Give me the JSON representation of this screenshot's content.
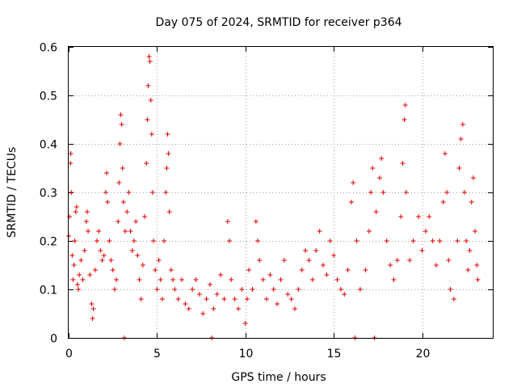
{
  "chart_data": {
    "type": "scatter",
    "title": "Day 075 of 2024, SRMTID for receiver p364",
    "xlabel": "GPS time / hours",
    "ylabel": "SRMTID / TECUs",
    "xlim": [
      0,
      24
    ],
    "ylim": [
      0,
      0.6
    ],
    "x_ticks": [
      0,
      5,
      10,
      15,
      20
    ],
    "x_tick_labels": [
      "0",
      "5",
      "10",
      "15",
      "20"
    ],
    "y_ticks": [
      0,
      0.1,
      0.2,
      0.3,
      0.4,
      0.5,
      0.6
    ],
    "y_tick_labels": [
      "0",
      "0.1",
      "0.2",
      "0.3",
      "0.4",
      "0.5",
      "0.6"
    ],
    "grid": true,
    "marker": "+",
    "series_color": "#e00000",
    "series": [
      {
        "name": "SRMTID",
        "points": [
          [
            0.0,
            0.21
          ],
          [
            0.05,
            0.25
          ],
          [
            0.1,
            0.36
          ],
          [
            0.12,
            0.38
          ],
          [
            0.15,
            0.3
          ],
          [
            0.2,
            0.17
          ],
          [
            0.25,
            0.12
          ],
          [
            0.3,
            0.15
          ],
          [
            0.35,
            0.2
          ],
          [
            0.4,
            0.26
          ],
          [
            0.45,
            0.27
          ],
          [
            0.5,
            0.11
          ],
          [
            0.55,
            0.1
          ],
          [
            0.6,
            0.13
          ],
          [
            0.7,
            0.16
          ],
          [
            0.8,
            0.12
          ],
          [
            0.9,
            0.18
          ],
          [
            1.0,
            0.24
          ],
          [
            1.05,
            0.26
          ],
          [
            1.1,
            0.22
          ],
          [
            1.2,
            0.13
          ],
          [
            1.3,
            0.07
          ],
          [
            1.35,
            0.04
          ],
          [
            1.4,
            0.06
          ],
          [
            1.5,
            0.14
          ],
          [
            1.6,
            0.2
          ],
          [
            1.7,
            0.22
          ],
          [
            1.8,
            0.18
          ],
          [
            1.9,
            0.16
          ],
          [
            2.0,
            0.17
          ],
          [
            2.1,
            0.3
          ],
          [
            2.15,
            0.34
          ],
          [
            2.2,
            0.28
          ],
          [
            2.3,
            0.2
          ],
          [
            2.4,
            0.16
          ],
          [
            2.5,
            0.14
          ],
          [
            2.6,
            0.1
          ],
          [
            2.7,
            0.12
          ],
          [
            2.8,
            0.24
          ],
          [
            2.85,
            0.32
          ],
          [
            2.9,
            0.4
          ],
          [
            2.95,
            0.46
          ],
          [
            3.0,
            0.44
          ],
          [
            3.05,
            0.35
          ],
          [
            3.1,
            0.28
          ],
          [
            3.15,
            0.0
          ],
          [
            3.2,
            0.22
          ],
          [
            3.3,
            0.26
          ],
          [
            3.4,
            0.3
          ],
          [
            3.5,
            0.22
          ],
          [
            3.6,
            0.18
          ],
          [
            3.7,
            0.2
          ],
          [
            3.8,
            0.24
          ],
          [
            3.9,
            0.17
          ],
          [
            4.0,
            0.12
          ],
          [
            4.1,
            0.08
          ],
          [
            4.2,
            0.15
          ],
          [
            4.3,
            0.25
          ],
          [
            4.4,
            0.36
          ],
          [
            4.45,
            0.45
          ],
          [
            4.5,
            0.52
          ],
          [
            4.55,
            0.58
          ],
          [
            4.6,
            0.57
          ],
          [
            4.65,
            0.49
          ],
          [
            4.7,
            0.42
          ],
          [
            4.75,
            0.3
          ],
          [
            4.8,
            0.2
          ],
          [
            4.9,
            0.14
          ],
          [
            5.0,
            0.1
          ],
          [
            5.1,
            0.16
          ],
          [
            5.2,
            0.12
          ],
          [
            5.3,
            0.08
          ],
          [
            5.4,
            0.2
          ],
          [
            5.5,
            0.3
          ],
          [
            5.55,
            0.35
          ],
          [
            5.6,
            0.42
          ],
          [
            5.65,
            0.38
          ],
          [
            5.7,
            0.26
          ],
          [
            5.8,
            0.14
          ],
          [
            5.9,
            0.12
          ],
          [
            6.0,
            0.1
          ],
          [
            6.2,
            0.08
          ],
          [
            6.4,
            0.12
          ],
          [
            6.6,
            0.07
          ],
          [
            6.8,
            0.06
          ],
          [
            7.0,
            0.1
          ],
          [
            7.2,
            0.12
          ],
          [
            7.4,
            0.09
          ],
          [
            7.6,
            0.05
          ],
          [
            7.8,
            0.08
          ],
          [
            8.0,
            0.11
          ],
          [
            8.1,
            0.0
          ],
          [
            8.2,
            0.06
          ],
          [
            8.4,
            0.09
          ],
          [
            8.6,
            0.13
          ],
          [
            8.8,
            0.08
          ],
          [
            9.0,
            0.24
          ],
          [
            9.1,
            0.2
          ],
          [
            9.2,
            0.12
          ],
          [
            9.4,
            0.08
          ],
          [
            9.6,
            0.06
          ],
          [
            9.8,
            0.1
          ],
          [
            10.0,
            0.03
          ],
          [
            10.1,
            0.08
          ],
          [
            10.2,
            0.14
          ],
          [
            10.4,
            0.1
          ],
          [
            10.6,
            0.24
          ],
          [
            10.7,
            0.2
          ],
          [
            10.8,
            0.16
          ],
          [
            11.0,
            0.12
          ],
          [
            11.2,
            0.08
          ],
          [
            11.4,
            0.13
          ],
          [
            11.6,
            0.1
          ],
          [
            11.8,
            0.07
          ],
          [
            12.0,
            0.12
          ],
          [
            12.2,
            0.16
          ],
          [
            12.4,
            0.09
          ],
          [
            12.6,
            0.08
          ],
          [
            12.8,
            0.06
          ],
          [
            13.0,
            0.1
          ],
          [
            13.2,
            0.14
          ],
          [
            13.4,
            0.18
          ],
          [
            13.6,
            0.16
          ],
          [
            13.8,
            0.12
          ],
          [
            14.0,
            0.18
          ],
          [
            14.2,
            0.22
          ],
          [
            14.4,
            0.15
          ],
          [
            14.6,
            0.13
          ],
          [
            14.8,
            0.2
          ],
          [
            15.0,
            0.17
          ],
          [
            15.2,
            0.12
          ],
          [
            15.4,
            0.1
          ],
          [
            15.6,
            0.09
          ],
          [
            15.8,
            0.14
          ],
          [
            16.0,
            0.28
          ],
          [
            16.1,
            0.32
          ],
          [
            16.2,
            0.0
          ],
          [
            16.3,
            0.2
          ],
          [
            16.5,
            0.1
          ],
          [
            16.8,
            0.14
          ],
          [
            17.0,
            0.22
          ],
          [
            17.1,
            0.3
          ],
          [
            17.2,
            0.35
          ],
          [
            17.3,
            0.0
          ],
          [
            17.4,
            0.26
          ],
          [
            17.6,
            0.33
          ],
          [
            17.7,
            0.37
          ],
          [
            17.8,
            0.3
          ],
          [
            18.0,
            0.2
          ],
          [
            18.2,
            0.15
          ],
          [
            18.4,
            0.12
          ],
          [
            18.6,
            0.16
          ],
          [
            18.8,
            0.25
          ],
          [
            18.9,
            0.36
          ],
          [
            19.0,
            0.45
          ],
          [
            19.05,
            0.48
          ],
          [
            19.1,
            0.3
          ],
          [
            19.3,
            0.16
          ],
          [
            19.5,
            0.2
          ],
          [
            19.8,
            0.25
          ],
          [
            20.0,
            0.18
          ],
          [
            20.2,
            0.22
          ],
          [
            20.4,
            0.25
          ],
          [
            20.6,
            0.2
          ],
          [
            20.8,
            0.15
          ],
          [
            21.0,
            0.2
          ],
          [
            21.2,
            0.28
          ],
          [
            21.3,
            0.38
          ],
          [
            21.4,
            0.3
          ],
          [
            21.5,
            0.16
          ],
          [
            21.6,
            0.1
          ],
          [
            21.8,
            0.08
          ],
          [
            22.0,
            0.2
          ],
          [
            22.1,
            0.35
          ],
          [
            22.2,
            0.41
          ],
          [
            22.3,
            0.44
          ],
          [
            22.4,
            0.3
          ],
          [
            22.5,
            0.2
          ],
          [
            22.6,
            0.14
          ],
          [
            22.7,
            0.18
          ],
          [
            22.8,
            0.28
          ],
          [
            22.9,
            0.33
          ],
          [
            23.0,
            0.22
          ],
          [
            23.1,
            0.15
          ],
          [
            23.15,
            0.12
          ]
        ]
      }
    ]
  }
}
